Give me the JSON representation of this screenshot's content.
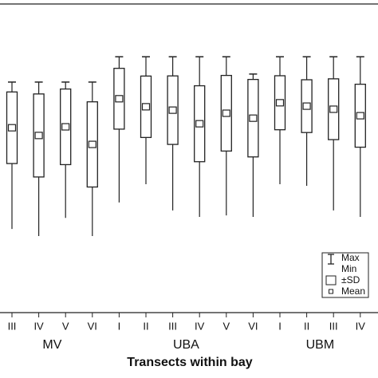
{
  "chart_data": {
    "type": "box",
    "x_label": "Transects within bay",
    "categories": [
      "III",
      "IV",
      "V",
      "VI",
      "I",
      "II",
      "III",
      "IV",
      "V",
      "VI",
      "I",
      "II",
      "III",
      "IV"
    ],
    "groups": [
      "MV",
      "UBA",
      "UBM"
    ],
    "max": [
      74.7,
      74.7,
      74.7,
      74.7,
      82.9,
      82.9,
      82.9,
      82.9,
      82.9,
      77.3,
      82.9,
      82.9,
      82.9,
      82.9
    ],
    "min": [
      27.1,
      24.8,
      30.7,
      24.8,
      35.7,
      41.6,
      33.1,
      31.0,
      31.5,
      31.0,
      41.6,
      41.1,
      33.1,
      31.0
    ],
    "mean": [
      59.9,
      57.4,
      60.2,
      54.5,
      69.3,
      66.7,
      65.6,
      61.2,
      64.6,
      63.0,
      68.0,
      66.9,
      65.9,
      63.8
    ],
    "sd": [
      11.6,
      13.45,
      12.25,
      13.8,
      9.85,
      9.95,
      11.1,
      12.3,
      12.25,
      12.55,
      8.75,
      8.55,
      9.85,
      10.2
    ],
    "legend": [
      "Max",
      "Min",
      "±SD",
      "Mean"
    ],
    "color": "#222222",
    "ylim": [
      0,
      100
    ]
  }
}
